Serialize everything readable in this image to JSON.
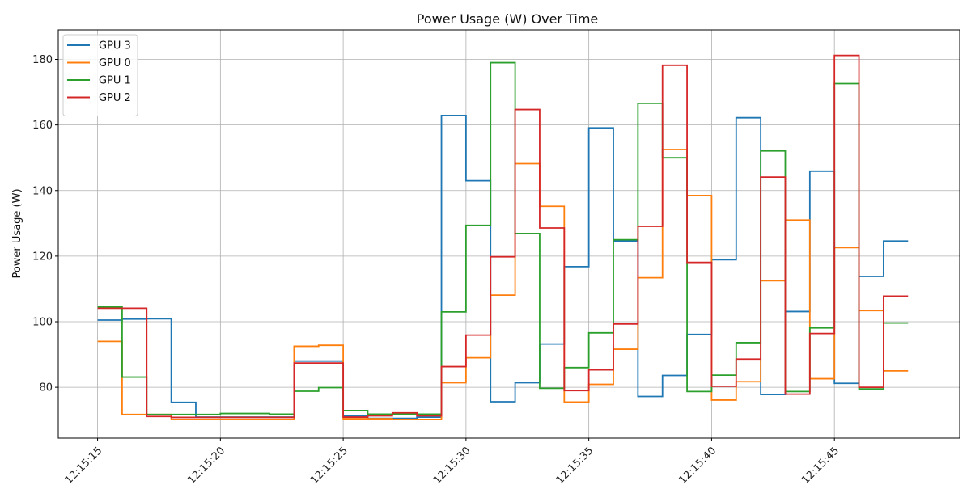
{
  "chart_data": {
    "type": "line",
    "step": "post",
    "title": "Power Usage (W) Over Time",
    "xlabel": "",
    "ylabel": "Power Usage (W)",
    "x_ticks": [
      "12:15:15",
      "12:15:20",
      "12:15:25",
      "12:15:30",
      "12:15:35",
      "12:15:40",
      "12:15:45"
    ],
    "y_ticks": [
      80,
      100,
      120,
      140,
      160,
      180
    ],
    "xlim_seconds_after_12_15_15": [
      -1.6,
      35.1
    ],
    "ylim": [
      64.5,
      189.0
    ],
    "grid": true,
    "legend_position": "top-left",
    "x": [
      "12:15:15",
      "12:15:16",
      "12:15:17",
      "12:15:18",
      "12:15:19",
      "12:15:20",
      "12:15:21",
      "12:15:22",
      "12:15:23",
      "12:15:24",
      "12:15:25",
      "12:15:26",
      "12:15:27",
      "12:15:28",
      "12:15:29",
      "12:15:30",
      "12:15:31",
      "12:15:32",
      "12:15:33",
      "12:15:34",
      "12:15:35",
      "12:15:36",
      "12:15:37",
      "12:15:38",
      "12:15:39",
      "12:15:40",
      "12:15:41",
      "12:15:42",
      "12:15:43",
      "12:15:44",
      "12:15:45",
      "12:15:46",
      "12:15:47",
      "12:15:48"
    ],
    "series": [
      {
        "name": "GPU 3",
        "color": "#1f77b4",
        "values": [
          100.5,
          100.8,
          100.9,
          75.4,
          70.9,
          70.9,
          70.9,
          70.9,
          88.0,
          88.0,
          71.2,
          70.5,
          70.5,
          70.9,
          162.9,
          143.0,
          75.6,
          81.4,
          93.2,
          116.8,
          159.1,
          124.6,
          77.2,
          83.6,
          96.1,
          118.9,
          162.2,
          77.8,
          103.1,
          145.9,
          81.2,
          113.8,
          124.6,
          124.6
        ]
      },
      {
        "name": "GPU 0",
        "color": "#ff7f0e",
        "values": [
          94.0,
          71.7,
          71.7,
          70.2,
          70.2,
          70.2,
          70.2,
          70.2,
          92.5,
          92.8,
          70.4,
          70.4,
          70.2,
          70.2,
          81.4,
          89.0,
          108.1,
          148.2,
          135.2,
          75.5,
          80.9,
          91.6,
          113.4,
          152.5,
          138.5,
          76.1,
          81.7,
          112.5,
          131.0,
          82.6,
          122.6,
          103.4,
          85.0,
          85.0
        ]
      },
      {
        "name": "GPU 1",
        "color": "#2ca02c",
        "values": [
          104.5,
          83.1,
          71.7,
          71.7,
          71.7,
          72.0,
          72.0,
          71.8,
          78.8,
          79.9,
          72.9,
          71.8,
          71.8,
          71.8,
          103.0,
          129.4,
          179.0,
          126.9,
          79.7,
          86.0,
          96.6,
          125.0,
          166.6,
          150.0,
          78.7,
          83.7,
          93.6,
          152.1,
          78.7,
          98.1,
          172.6,
          79.5,
          99.6,
          99.6
        ]
      },
      {
        "name": "GPU 2",
        "color": "#d62728",
        "values": [
          104.1,
          104.1,
          71.1,
          70.8,
          70.8,
          70.8,
          70.8,
          70.8,
          87.4,
          87.4,
          70.9,
          71.3,
          72.2,
          71.3,
          86.3,
          95.9,
          119.8,
          164.7,
          128.6,
          79.0,
          85.3,
          99.3,
          129.1,
          178.2,
          118.1,
          80.3,
          88.6,
          144.1,
          77.9,
          96.4,
          181.2,
          80.0,
          107.8,
          107.8
        ]
      }
    ]
  }
}
